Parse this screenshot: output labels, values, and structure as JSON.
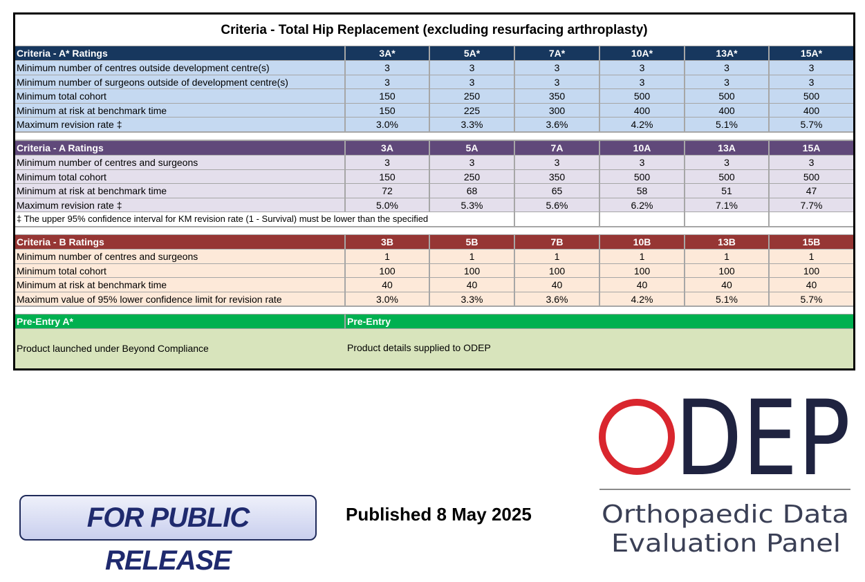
{
  "title": "Criteria - Total Hip Replacement (excluding resurfacing arthroplasty)",
  "sections": [
    {
      "header": [
        "Criteria - A* Ratings",
        "3A*",
        "5A*",
        "7A*",
        "10A*",
        "13A*",
        "15A*"
      ],
      "rows": [
        [
          "Minimum number of centres outside development centre(s)",
          "3",
          "3",
          "3",
          "3",
          "3",
          "3"
        ],
        [
          "Minimum number of surgeons outside of development centre(s)",
          "3",
          "3",
          "3",
          "3",
          "3",
          "3"
        ],
        [
          "Minimum total cohort",
          "150",
          "250",
          "350",
          "500",
          "500",
          "500"
        ],
        [
          "Minimum at risk at benchmark time",
          "150",
          "225",
          "300",
          "400",
          "400",
          "400"
        ],
        [
          "Maximum revision rate ‡",
          "3.0%",
          "3.3%",
          "3.6%",
          "4.2%",
          "5.1%",
          "5.7%"
        ]
      ]
    },
    {
      "header": [
        "Criteria - A Ratings",
        "3A",
        "5A",
        "7A",
        "10A",
        "13A",
        "15A"
      ],
      "rows": [
        [
          "Minimum number of centres and surgeons",
          "3",
          "3",
          "3",
          "3",
          "3",
          "3"
        ],
        [
          "Minimum total cohort",
          "150",
          "250",
          "350",
          "500",
          "500",
          "500"
        ],
        [
          "Minimum at risk at benchmark time",
          "72",
          "68",
          "65",
          "58",
          "51",
          "47"
        ],
        [
          "Maximum revision rate ‡",
          "5.0%",
          "5.3%",
          "5.6%",
          "6.2%",
          "7.1%",
          "7.7%"
        ]
      ]
    },
    {
      "header": [
        "Criteria - B Ratings",
        "3B",
        "5B",
        "7B",
        "10B",
        "13B",
        "15B"
      ],
      "rows": [
        [
          "Minimum number of centres and surgeons",
          "1",
          "1",
          "1",
          "1",
          "1",
          "1"
        ],
        [
          "Minimum total cohort",
          "100",
          "100",
          "100",
          "100",
          "100",
          "100"
        ],
        [
          "Minimum at risk at benchmark time",
          "40",
          "40",
          "40",
          "40",
          "40",
          "40"
        ],
        [
          "Maximum value of 95%  lower confidence limit for revision rate",
          "3.0%",
          "3.3%",
          "3.6%",
          "4.2%",
          "5.1%",
          "5.7%"
        ]
      ]
    }
  ],
  "footnote": "‡ The upper 95% confidence interval for KM revision rate (1 - Survival) must be lower than the specified level",
  "pre_entry": {
    "headers": [
      "Pre-Entry A*",
      "Pre-Entry"
    ],
    "cells": [
      "Product launched under Beyond Compliance",
      "Product details supplied to ODEP"
    ]
  },
  "footer": {
    "badge": "FOR PUBLIC RELEASE",
    "published": "Published 8 May 2025",
    "logo": [
      "O",
      "DEP"
    ],
    "logo_subtitle": [
      "Orthopaedic Data",
      "Evaluation Panel"
    ]
  }
}
